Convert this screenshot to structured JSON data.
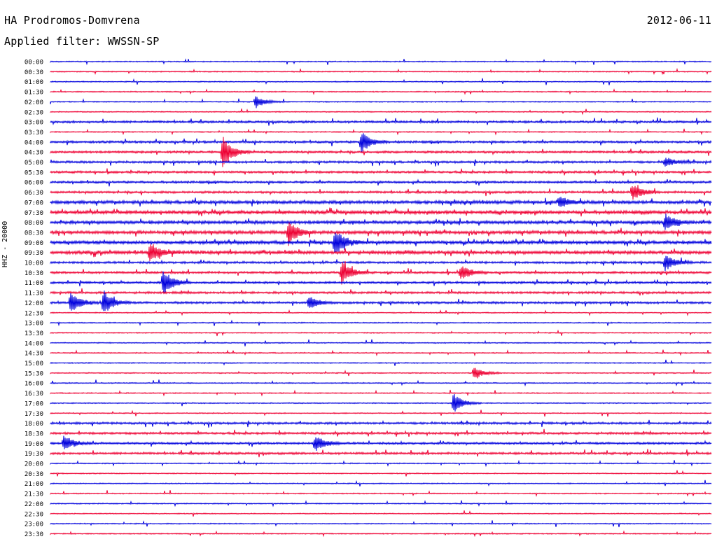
{
  "header": {
    "station": "HA Prodromos-Domvrena",
    "filter": "Applied filter: WWSSN-SP",
    "date": "2012-06-11",
    "channel": "HHZ - 20000"
  },
  "colors": {
    "a": "#0000dd",
    "b": "#ee0033"
  },
  "chart_data": {
    "type": "line",
    "title": "HA Prodromos-Domvrena",
    "subtitle": "Applied filter: WWSSN-SP",
    "ylabel": "HHZ - 20000",
    "row_minutes": 30,
    "y_tick_labels": [
      "00:00",
      "00:30",
      "01:00",
      "01:30",
      "02:00",
      "02:30",
      "03:00",
      "03:30",
      "04:00",
      "04:30",
      "05:00",
      "05:30",
      "06:00",
      "06:30",
      "07:00",
      "07:30",
      "08:00",
      "08:30",
      "09:00",
      "09:30",
      "10:00",
      "10:30",
      "11:00",
      "11:30",
      "12:00",
      "12:30",
      "13:00",
      "13:30",
      "14:00",
      "14:30",
      "15:00",
      "15:30",
      "16:00",
      "16:30",
      "17:00",
      "17:30",
      "18:00",
      "18:30",
      "19:00",
      "19:30",
      "20:00",
      "20:30",
      "21:00",
      "21:30",
      "22:00",
      "22:30",
      "23:00",
      "23:30"
    ],
    "row_colors": [
      "blue",
      "red"
    ],
    "noise_level": [
      1,
      1,
      1,
      1,
      1,
      1,
      2,
      1,
      2,
      2,
      2,
      2,
      2,
      2,
      3,
      3,
      3,
      3,
      3,
      3,
      2,
      2,
      2,
      2,
      2,
      1,
      1,
      1,
      1,
      1,
      1,
      1,
      1,
      1,
      1,
      1,
      2,
      2,
      2,
      2,
      1,
      1,
      1,
      1,
      1,
      1,
      1,
      1
    ],
    "events": [
      {
        "row": 4,
        "t": 0.31,
        "amp": 9
      },
      {
        "row": 8,
        "t": 0.47,
        "amp": 16
      },
      {
        "row": 9,
        "t": 0.26,
        "amp": 24
      },
      {
        "row": 10,
        "t": 0.93,
        "amp": 7
      },
      {
        "row": 13,
        "t": 0.88,
        "amp": 12
      },
      {
        "row": 14,
        "t": 0.77,
        "amp": 8
      },
      {
        "row": 16,
        "t": 0.93,
        "amp": 13
      },
      {
        "row": 17,
        "t": 0.36,
        "amp": 18
      },
      {
        "row": 18,
        "t": 0.43,
        "amp": 20
      },
      {
        "row": 19,
        "t": 0.15,
        "amp": 15
      },
      {
        "row": 20,
        "t": 0.93,
        "amp": 12
      },
      {
        "row": 21,
        "t": 0.44,
        "amp": 18
      },
      {
        "row": 21,
        "t": 0.62,
        "amp": 12
      },
      {
        "row": 22,
        "t": 0.17,
        "amp": 20
      },
      {
        "row": 24,
        "t": 0.03,
        "amp": 16
      },
      {
        "row": 24,
        "t": 0.08,
        "amp": 18
      },
      {
        "row": 24,
        "t": 0.39,
        "amp": 10
      },
      {
        "row": 31,
        "t": 0.64,
        "amp": 10
      },
      {
        "row": 34,
        "t": 0.61,
        "amp": 14
      },
      {
        "row": 38,
        "t": 0.02,
        "amp": 12
      },
      {
        "row": 38,
        "t": 0.4,
        "amp": 12
      }
    ]
  }
}
